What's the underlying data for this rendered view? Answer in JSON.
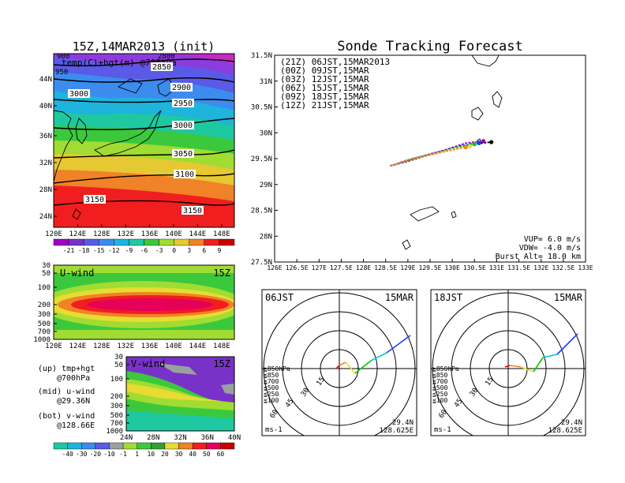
{
  "left_panel_title": "15Z,14MAR2013 (init)",
  "main_title": "Sonde Tracking Forecast",
  "map_top": {
    "overlay_label": "temp(C)+hgt(m) @700hPa",
    "corner_labels": [
      "900",
      "950",
      "2800"
    ],
    "lat_labels": [
      "44N",
      "40N",
      "36N",
      "32N",
      "28N",
      "24N"
    ],
    "lon_labels": [
      "120E",
      "124E",
      "128E",
      "132E",
      "136E",
      "140E",
      "144E",
      "148E"
    ],
    "contour_labels": [
      "2850",
      "3000",
      "2900",
      "2950",
      "3000",
      "3050",
      "3100",
      "3150",
      "3150"
    ],
    "colorbar_labels": [
      "-21",
      "-18",
      "-15",
      "-12",
      "-9",
      "-6",
      "-3",
      "0",
      "3",
      "6",
      "9"
    ]
  },
  "uwind_panel": {
    "title": "U-wind",
    "time": "15Z",
    "y_labels": [
      "30",
      "50",
      "100",
      "200",
      "300",
      "500",
      "700",
      "1000"
    ],
    "x_labels": [
      "120E",
      "124E",
      "128E",
      "132E",
      "136E",
      "140E",
      "144E",
      "148E"
    ]
  },
  "vwind_panel": {
    "title": "V-wind",
    "time": "15Z",
    "y_labels": [
      "30",
      "50",
      "100",
      "200",
      "300",
      "500",
      "700",
      "1000"
    ],
    "x_labels": [
      "24N",
      "28N",
      "32N",
      "36N",
      "40N"
    ],
    "colorbar_labels": [
      "-40",
      "-30",
      "-20",
      "-10",
      "-1",
      "1",
      "10",
      "20",
      "30",
      "40",
      "50",
      "60"
    ]
  },
  "legend_left": [
    {
      "line1": "(up) tmp+hgt",
      "line2": "@700hPa"
    },
    {
      "line1": "(mid) u-wind",
      "line2": "@29.36N"
    },
    {
      "line1": "(bot) v-wind",
      "line2": "@128.66E"
    }
  ],
  "track_map": {
    "lat_labels": [
      "31.5N",
      "31N",
      "30.5N",
      "30N",
      "29.5N",
      "29N",
      "28.5N",
      "28N",
      "27.5N"
    ],
    "lon_labels": [
      "126E",
      "126.5E",
      "127E",
      "127.5E",
      "128E",
      "128.5E",
      "129E",
      "129.5E",
      "130E",
      "130.5E",
      "131E",
      "131.5E",
      "132E",
      "132.5E",
      "133E"
    ],
    "legend": [
      {
        "text": "(21Z)  06JST,15MAR2013",
        "color": "#000000"
      },
      {
        "text": "(00Z)  09JST,15MAR",
        "color": "#a000c8"
      },
      {
        "text": "(03Z)  12JST,15MAR",
        "color": "#1e3cff"
      },
      {
        "text": "(06Z)  15JST,15MAR",
        "color": "#00c800"
      },
      {
        "text": "(09Z)  18JST,15MAR",
        "color": "#e6dc32"
      },
      {
        "text": "(12Z)  21JST,15MAR",
        "color": "#f08228"
      }
    ],
    "params": [
      "VUP=  6.0  m/s",
      "VDW= -4.0  m/s",
      "Burst Alt= 18.0  km"
    ]
  },
  "hodograph_left": {
    "time_label": "06JST",
    "date_label": "15MAR",
    "ring_labels": [
      "15",
      "30",
      "45",
      "60"
    ],
    "unit": "ms-1",
    "lat": "29.4N",
    "lon": "128.625E",
    "levels": [
      {
        "text": "≧850hPa",
        "color": "#e60000"
      },
      {
        "text": "≦850",
        "color": "#f08228"
      },
      {
        "text": "≦700",
        "color": "#e6dc32"
      },
      {
        "text": "≦500",
        "color": "#00c800"
      },
      {
        "text": "≦250",
        "color": "#00c8c8"
      },
      {
        "text": "≦100",
        "color": "#1e3cff"
      }
    ]
  },
  "hodograph_right": {
    "time_label": "18JST",
    "date_label": "15MAR",
    "ring_labels": [
      "15",
      "30",
      "45",
      "60"
    ],
    "unit": "ms-1",
    "lat": "29.4N",
    "lon": "128.625E",
    "levels": [
      {
        "text": "≧850hPa",
        "color": "#e60000"
      },
      {
        "text": "≦850",
        "color": "#f08228"
      },
      {
        "text": "≦700",
        "color": "#e6dc32"
      },
      {
        "text": "≦500",
        "color": "#00c800"
      },
      {
        "text": "≦250",
        "color": "#00c8c8"
      },
      {
        "text": "≦100",
        "color": "#1e3cff"
      }
    ]
  },
  "chart_data": {
    "type": "line",
    "title": "Sonde Tracking Forecast",
    "xlabel": "",
    "ylabel": "",
    "xlim": [
      126,
      133
    ],
    "ylim": [
      27.5,
      31.5
    ],
    "series": [
      {
        "name": "(21Z)  06JST,15MAR2013",
        "color": "#000000",
        "x": [
          128.62,
          129.2,
          129.8,
          130.4,
          130.88
        ],
        "y": [
          29.36,
          29.5,
          29.65,
          29.78,
          29.82
        ]
      },
      {
        "name": "(00Z)  09JST,15MAR",
        "color": "#a000c8",
        "x": [
          128.6,
          129.2,
          129.8,
          130.3,
          130.7
        ],
        "y": [
          29.36,
          29.52,
          29.66,
          29.8,
          29.84
        ]
      },
      {
        "name": "(03Z)  12JST,15MAR",
        "color": "#1e3cff",
        "x": [
          128.62,
          129.1,
          129.7,
          130.2,
          130.6
        ],
        "y": [
          29.36,
          29.5,
          29.62,
          29.75,
          29.8
        ]
      },
      {
        "name": "(06Z)  15JST,15MAR",
        "color": "#00c800",
        "x": [
          128.62,
          129.0,
          129.6,
          130.1,
          130.5
        ],
        "y": [
          29.36,
          29.48,
          29.6,
          29.72,
          29.78
        ]
      },
      {
        "name": "(09Z)  18JST,15MAR",
        "color": "#e6dc32",
        "x": [
          128.62,
          129.0,
          129.5,
          130.0,
          130.4
        ],
        "y": [
          29.36,
          29.47,
          29.57,
          29.68,
          29.74
        ]
      },
      {
        "name": "(12Z)  21JST,15MAR",
        "color": "#f08228",
        "x": [
          128.62,
          128.9,
          129.4,
          129.9,
          130.3
        ],
        "y": [
          29.36,
          29.45,
          29.55,
          29.65,
          29.72
        ]
      }
    ]
  }
}
